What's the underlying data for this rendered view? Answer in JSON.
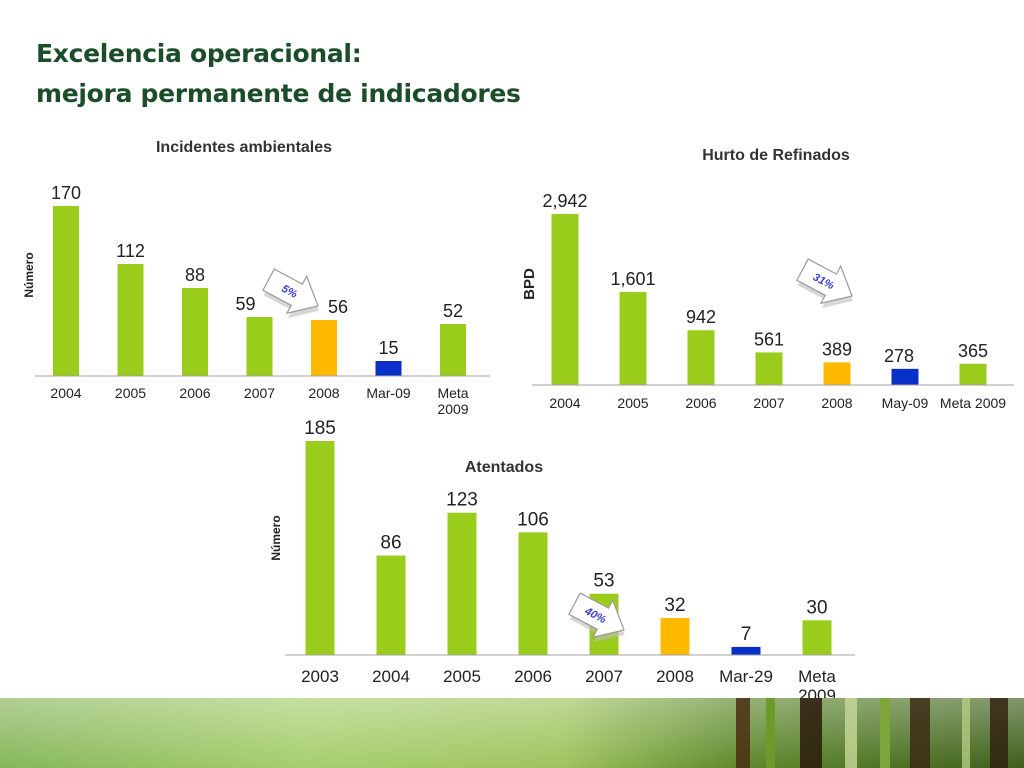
{
  "slide": {
    "title_line1": "Excelencia operacional:",
    "title_line2": "mejora permanente de indicadores"
  },
  "colors": {
    "title": "#1b4d2a",
    "bar_green": "#9acd1b",
    "bar_orange": "#ffba00",
    "bar_blue": "#0a2ec8",
    "callout_text": "#3a3ad0"
  },
  "chart_data": [
    {
      "type": "bar",
      "title": "Incidentes ambientales",
      "ylabel": "Número",
      "categories": [
        "2004",
        "2005",
        "2006",
        "2007",
        "2008",
        "Mar-09",
        "Meta 2009"
      ],
      "values": [
        170,
        112,
        88,
        59,
        56,
        15,
        52
      ],
      "bar_colors": [
        "green",
        "green",
        "green",
        "green",
        "orange",
        "blue",
        "green"
      ],
      "callout": "5%",
      "grid": false,
      "legend": "none"
    },
    {
      "type": "bar",
      "title": "Hurto de Refinados",
      "ylabel": "BPD",
      "categories": [
        "2004",
        "2005",
        "2006",
        "2007",
        "2008",
        "May-09",
        "Meta 2009"
      ],
      "values": [
        2942,
        1601,
        942,
        561,
        389,
        278,
        365
      ],
      "value_labels": [
        "2,942",
        "1,601",
        "942",
        "561",
        "389",
        "278",
        "365"
      ],
      "bar_colors": [
        "green",
        "green",
        "green",
        "green",
        "orange",
        "blue",
        "green"
      ],
      "callout": "31%",
      "grid": false,
      "legend": "none"
    },
    {
      "type": "bar",
      "title": "Atentados",
      "ylabel": "Número",
      "categories": [
        "2003",
        "2004",
        "2005",
        "2006",
        "2007",
        "2008",
        "Mar-29",
        "Meta 2009"
      ],
      "values": [
        185,
        86,
        123,
        106,
        53,
        32,
        7,
        30
      ],
      "bar_colors": [
        "green",
        "green",
        "green",
        "green",
        "green",
        "orange",
        "blue",
        "green"
      ],
      "callout": "40%",
      "grid": false,
      "legend": "none"
    }
  ]
}
